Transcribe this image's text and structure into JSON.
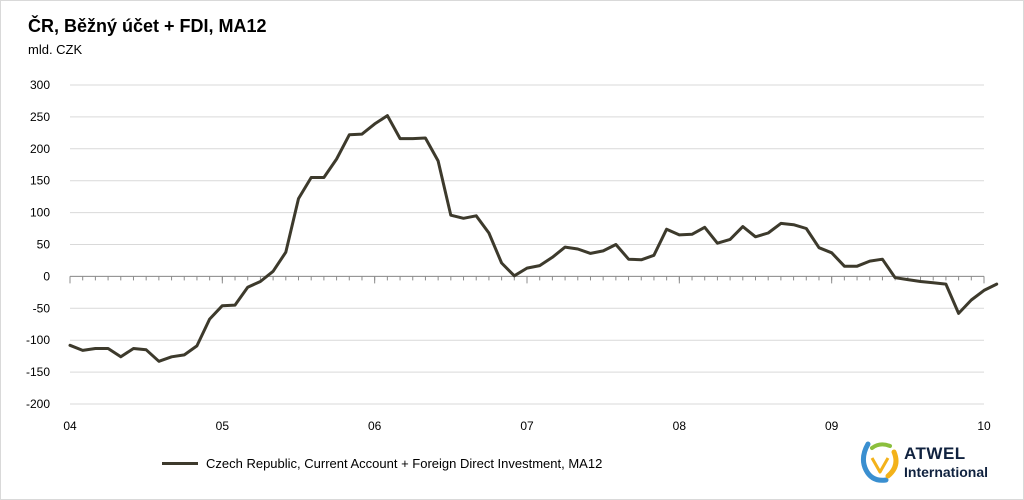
{
  "title": "ČR, Běžný účet + FDI, MA12",
  "unit": "mld. CZK",
  "legend_label": "Czech Republic, Current Account +  Foreign Direct Investment, MA12",
  "logo": {
    "line1": "ATWEL",
    "line2": "International"
  },
  "colors": {
    "series": "#3d3a2c",
    "grid": "#d9d9d9",
    "axis": "#8c8c8c"
  },
  "chart_data": {
    "type": "line",
    "title": "ČR, Běžný účet + FDI, MA12",
    "ylabel": "mld. CZK",
    "xlabel": "",
    "ylim": [
      -200,
      300
    ],
    "yticks": [
      300,
      250,
      200,
      150,
      100,
      50,
      0,
      -50,
      -100,
      -150,
      -200
    ],
    "x_tick_labels": [
      "04",
      "05",
      "06",
      "07",
      "08",
      "09",
      "10"
    ],
    "x_tick_months": [
      0,
      12,
      24,
      36,
      48,
      60,
      72
    ],
    "grid": true,
    "legend_position": "bottom",
    "series": [
      {
        "name": "Czech Republic, Current Account +  Foreign Direct Investment, MA12",
        "x_start": "2004-01",
        "frequency": "monthly",
        "values": [
          -108,
          -116,
          -113,
          -113,
          -126,
          -113,
          -115,
          -133,
          -126,
          -123,
          -109,
          -67,
          -46,
          -45,
          -17,
          -8,
          8,
          38,
          122,
          155,
          155,
          184,
          222,
          223,
          239,
          252,
          216,
          216,
          217,
          181,
          96,
          91,
          95,
          68,
          21,
          1,
          13,
          17,
          30,
          46,
          43,
          36,
          40,
          50,
          27,
          26,
          33,
          74,
          65,
          66,
          77,
          52,
          58,
          78,
          62,
          68,
          83,
          81,
          75,
          45,
          37,
          16,
          16,
          24,
          27,
          -2,
          -5,
          -8,
          -10,
          -12,
          -58,
          -37,
          -22,
          -12
        ]
      }
    ]
  }
}
